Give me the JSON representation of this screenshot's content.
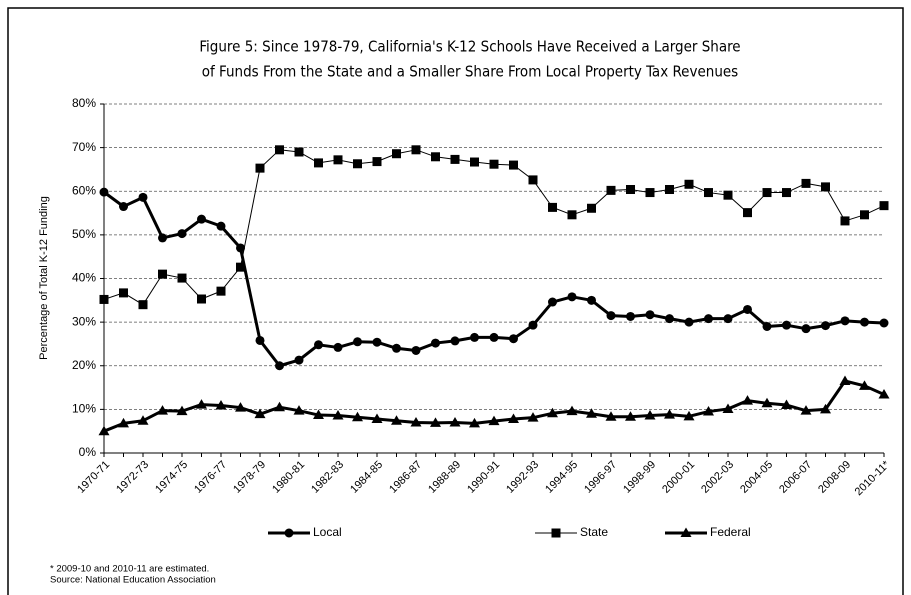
{
  "chart_data": {
    "type": "line",
    "title": [
      "Figure 5: Since 1978-79, California's K-12 Schools Have Received a Larger Share",
      "of Funds From the State and a Smaller Share From Local Property Tax Revenues"
    ],
    "y_label": "Percentage of Total K-12 Funding",
    "categories": [
      "1970-71",
      null,
      "1972-73",
      null,
      "1974-75",
      null,
      "1976-77",
      null,
      "1978-79",
      null,
      "1980-81",
      null,
      "1982-83",
      null,
      "1984-85",
      null,
      "1986-87",
      null,
      "1988-89",
      null,
      "1990-91",
      null,
      "1992-93",
      null,
      "1994-95",
      null,
      "1996-97",
      null,
      "1998-99",
      null,
      "2000-01",
      null,
      "2002-03",
      null,
      "2004-05",
      null,
      "2006-07",
      null,
      "2008-09",
      null,
      "2010-11*"
    ],
    "series": [
      {
        "name": "Local",
        "color": "#000000",
        "marker": "circle",
        "values": [
          59.8,
          56.5,
          58.6,
          49.3,
          50.3,
          53.6,
          52,
          47,
          25.8,
          20,
          21.3,
          24.8,
          24.2,
          25.5,
          25.4,
          24,
          23.5,
          25.2,
          25.7,
          26.5,
          26.5,
          26.2,
          29.3,
          34.6,
          35.8,
          35,
          31.5,
          31.3,
          31.7,
          30.8,
          30,
          30.8,
          30.8,
          32.9,
          29,
          29.3,
          28.5,
          29.2,
          30.3,
          30,
          29.8
        ]
      },
      {
        "name": "State",
        "color": "#000000",
        "marker": "square",
        "values": [
          35.2,
          36.7,
          34,
          41,
          40.1,
          35.3,
          37.1,
          42.6,
          65.3,
          69.5,
          69,
          66.5,
          67.2,
          66.3,
          66.8,
          68.6,
          69.5,
          67.9,
          67.3,
          66.7,
          66.2,
          66,
          62.6,
          56.3,
          54.6,
          56.1,
          60.2,
          60.4,
          59.7,
          60.4,
          61.6,
          59.7,
          59.1,
          55.1,
          59.7,
          59.7,
          61.8,
          61,
          53.2,
          54.6,
          56.7
        ]
      },
      {
        "name": "Federal",
        "color": "#000000",
        "marker": "triangle",
        "values": [
          5,
          6.8,
          7.4,
          9.7,
          9.6,
          11.1,
          10.9,
          10.4,
          8.9,
          10.5,
          9.7,
          8.7,
          8.6,
          8.2,
          7.8,
          7.4,
          7,
          6.9,
          7,
          6.8,
          7.3,
          7.8,
          8.1,
          9.1,
          9.6,
          9,
          8.3,
          8.3,
          8.6,
          8.8,
          8.4,
          9.5,
          10.1,
          12,
          11.4,
          11,
          9.7,
          10,
          16.5,
          15.4,
          13.4
        ]
      }
    ],
    "ylim": [
      0,
      80
    ],
    "yticks": [
      {
        "value": 0,
        "label": "0%"
      },
      {
        "value": 10,
        "label": "10%"
      },
      {
        "value": 20,
        "label": "20%"
      },
      {
        "value": 30,
        "label": "30%"
      },
      {
        "value": 40,
        "label": "40%"
      },
      {
        "value": 50,
        "label": "50%"
      },
      {
        "value": 60,
        "label": "60%"
      },
      {
        "value": 70,
        "label": "70%"
      },
      {
        "value": 80,
        "label": "80%"
      }
    ],
    "grid": true,
    "legend": "bottom",
    "notes": [
      "* 2009-10 and 2010-11 are estimated.",
      "Source: National Education Association"
    ]
  }
}
